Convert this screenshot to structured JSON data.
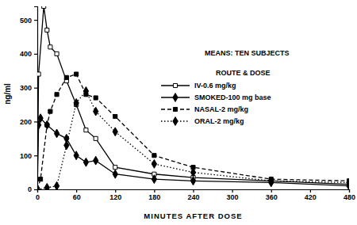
{
  "chart_data": {
    "type": "line",
    "x_label": "MINUTES AFTER DOSE",
    "y_label": "ng/ml",
    "annotations": [
      "MEANS: TEN SUBJECTS",
      "ROUTE & DOSE"
    ],
    "xlim": [
      0,
      480
    ],
    "xticks": [
      0,
      60,
      120,
      180,
      240,
      300,
      360,
      420,
      480
    ],
    "ylim": [
      0,
      540
    ],
    "yticks": [
      0,
      100,
      200,
      300,
      400,
      500
    ],
    "grid": false,
    "legend": "upper right",
    "series": [
      {
        "name": "IV-0.6 mg/kg",
        "color": "#000000",
        "marker": "square_open",
        "line_style": "solid",
        "x": [
          0,
          2,
          10,
          15,
          20,
          30,
          45,
          60,
          75,
          90,
          120,
          180,
          240,
          360,
          480
        ],
        "values": [
          0,
          340,
          540,
          470,
          420,
          400,
          320,
          250,
          175,
          150,
          65,
          45,
          35,
          25,
          15
        ]
      },
      {
        "name": "SMOKED-100 mg base",
        "color": "#000000",
        "marker": "diamond",
        "line_style": "solid",
        "x": [
          0,
          2,
          5,
          15,
          30,
          45,
          60,
          75,
          90,
          120,
          180,
          240,
          360,
          480
        ],
        "values": [
          0,
          190,
          210,
          190,
          165,
          150,
          100,
          80,
          85,
          45,
          30,
          25,
          20,
          10
        ]
      },
      {
        "name": "NASAL-2 mg/kg",
        "color": "#000000",
        "marker": "square",
        "line_style": "dashed",
        "x": [
          0,
          5,
          15,
          20,
          30,
          45,
          60,
          75,
          90,
          120,
          180,
          240,
          360,
          480
        ],
        "values": [
          0,
          30,
          190,
          230,
          280,
          330,
          340,
          280,
          270,
          215,
          100,
          65,
          30,
          25
        ]
      },
      {
        "name": "ORAL-2 mg/kg",
        "color": "#000000",
        "marker": "diamond",
        "line_style": "dotted",
        "x": [
          0,
          15,
          30,
          45,
          60,
          75,
          90,
          120,
          180,
          240,
          360,
          480
        ],
        "values": [
          0,
          5,
          10,
          130,
          255,
          290,
          230,
          170,
          75,
          50,
          25,
          20
        ]
      }
    ]
  }
}
